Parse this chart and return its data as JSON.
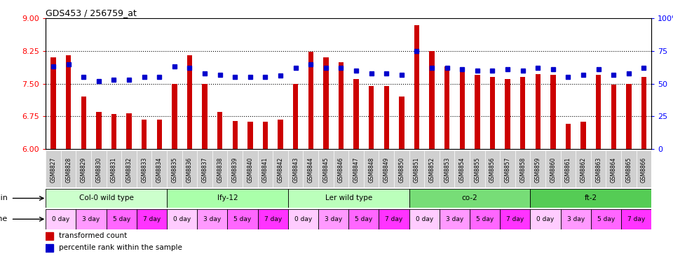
{
  "title": "GDS453 / 256759_at",
  "samples": [
    "GSM8827",
    "GSM8828",
    "GSM8829",
    "GSM8830",
    "GSM8831",
    "GSM8832",
    "GSM8833",
    "GSM8834",
    "GSM8835",
    "GSM8836",
    "GSM8837",
    "GSM8838",
    "GSM8839",
    "GSM8840",
    "GSM8841",
    "GSM8842",
    "GSM8843",
    "GSM8844",
    "GSM8845",
    "GSM8846",
    "GSM8847",
    "GSM8848",
    "GSM8849",
    "GSM8850",
    "GSM8851",
    "GSM8852",
    "GSM8853",
    "GSM8854",
    "GSM8855",
    "GSM8856",
    "GSM8857",
    "GSM8858",
    "GSM8859",
    "GSM8860",
    "GSM8861",
    "GSM8862",
    "GSM8863",
    "GSM8864",
    "GSM8865",
    "GSM8866"
  ],
  "bar_values": [
    8.1,
    8.15,
    7.2,
    6.85,
    6.8,
    6.82,
    6.68,
    6.68,
    7.5,
    8.15,
    7.5,
    6.85,
    6.65,
    6.63,
    6.63,
    6.68,
    7.5,
    8.24,
    8.1,
    8.0,
    7.6,
    7.45,
    7.45,
    7.2,
    8.85,
    8.25,
    7.9,
    7.8,
    7.7,
    7.65,
    7.6,
    7.65,
    7.72,
    7.7,
    6.58,
    6.62,
    7.7,
    7.48,
    7.5,
    7.65
  ],
  "percentile_values": [
    63,
    65,
    55,
    52,
    53,
    53,
    55,
    55,
    63,
    62,
    58,
    57,
    55,
    55,
    55,
    56,
    62,
    65,
    62,
    62,
    60,
    58,
    58,
    57,
    75,
    62,
    62,
    61,
    60,
    60,
    61,
    60,
    62,
    61,
    55,
    57,
    61,
    57,
    58,
    62
  ],
  "ymin": 6.0,
  "ymax": 9.0,
  "yticks_left": [
    6.0,
    6.75,
    7.5,
    8.25,
    9.0
  ],
  "yticks_right": [
    0,
    25,
    50,
    75,
    100
  ],
  "dotted_lines": [
    6.75,
    7.5,
    8.25
  ],
  "bar_color": "#cc0000",
  "marker_color": "#0000cc",
  "strains": [
    {
      "label": "Col-0 wild type",
      "start": 0,
      "end": 8,
      "color": "#ccffcc"
    },
    {
      "label": "lfy-12",
      "start": 8,
      "end": 16,
      "color": "#aaffaa"
    },
    {
      "label": "Ler wild type",
      "start": 16,
      "end": 24,
      "color": "#bbffbb"
    },
    {
      "label": "co-2",
      "start": 24,
      "end": 32,
      "color": "#77dd77"
    },
    {
      "label": "ft-2",
      "start": 32,
      "end": 40,
      "color": "#55cc55"
    }
  ],
  "time_labels": [
    "0 day",
    "3 day",
    "5 day",
    "7 day"
  ],
  "time_colors": [
    "#ffccff",
    "#ff99ff",
    "#ff66ff",
    "#ff33ff"
  ],
  "xlabel_bg": "#d0d0d0",
  "xlabel_border": "#aaaaaa"
}
